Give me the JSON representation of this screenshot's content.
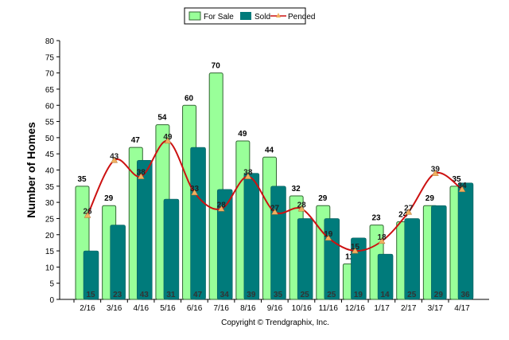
{
  "chart_data": {
    "type": "bar",
    "title": "",
    "xlabel": "",
    "ylabel": "Number of Homes",
    "ylim": [
      0,
      80
    ],
    "yticks": [
      0,
      5,
      10,
      15,
      20,
      25,
      30,
      35,
      40,
      45,
      50,
      55,
      60,
      65,
      70,
      75,
      80
    ],
    "grid": false,
    "legend_placement": "top",
    "categories": [
      "2/16",
      "3/16",
      "4/16",
      "5/16",
      "6/16",
      "7/16",
      "8/16",
      "9/16",
      "10/16",
      "11/16",
      "12/16",
      "1/17",
      "2/17",
      "3/17",
      "4/17"
    ],
    "series": [
      {
        "name": "For Sale",
        "type": "bar",
        "color": "#99ff99",
        "values": [
          35,
          29,
          47,
          54,
          60,
          70,
          49,
          44,
          32,
          29,
          11,
          23,
          24,
          29,
          35
        ]
      },
      {
        "name": "Sold",
        "type": "bar",
        "color": "#007b7b",
        "values": [
          15,
          23,
          43,
          31,
          47,
          34,
          39,
          35,
          25,
          25,
          19,
          14,
          25,
          29,
          36
        ]
      },
      {
        "name": "Pended",
        "type": "line",
        "color": "#cc1111",
        "marker_color": "#f0b060",
        "values": [
          26,
          43,
          38,
          49,
          33,
          28,
          38,
          27,
          28,
          19,
          15,
          18,
          27,
          39,
          34
        ]
      }
    ],
    "footer": "Copyright © Trendgraphix, Inc."
  }
}
